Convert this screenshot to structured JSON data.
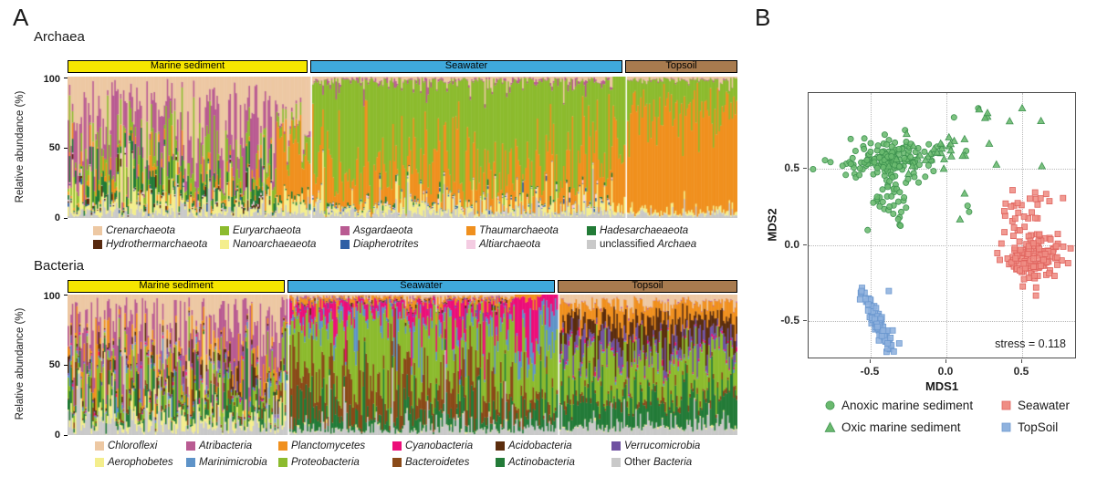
{
  "panel_a": {
    "label": "A"
  },
  "panel_b": {
    "label": "B"
  },
  "chart_data": [
    {
      "type": "bar",
      "subtype": "stacked-relative-abundance",
      "title": "Archaea",
      "ylabel": "Relative abundance (%)",
      "ylim": [
        0,
        100
      ],
      "ytick_labels": [
        "100",
        "50",
        "0"
      ],
      "taxa": [
        {
          "name": "Crenarchaeota",
          "color": "#EDC8A3"
        },
        {
          "name": "Euryarchaeota",
          "color": "#8CBB2E"
        },
        {
          "name": "Asgardaeota",
          "color": "#B95B92"
        },
        {
          "name": "Thaumarchaeota",
          "color": "#F0901E"
        },
        {
          "name": "Hadesarchaeaeota",
          "color": "#227B37"
        },
        {
          "name": "Hydrothermarchaeota",
          "color": "#57290F"
        },
        {
          "name": "Nanoarchaeaeota",
          "color": "#F4EE8D"
        },
        {
          "name": "Diapherotrites",
          "color": "#2F5FA5"
        },
        {
          "name": "Altiarchaeota",
          "color": "#F4CCE2"
        },
        {
          "name": "unclassified Archaea",
          "color": "#C9C9C9",
          "roman_prefix": "unclassified ",
          "display": "Archaea"
        }
      ],
      "legend_rows": [
        [
          "Crenarchaeota",
          "Euryarchaeota",
          "Asgardaeota",
          "Thaumarchaeota",
          "Hadesarchaeaeota"
        ],
        [
          "Hydrothermarchaeota",
          "Nanoarchaeaeota",
          "Diapherotrites",
          "Altiarchaeota",
          "unclassified Archaea"
        ]
      ],
      "stack_order": [
        "unclassified Archaea",
        "Nanoarchaeaeota",
        "Diapherotrites",
        "Hydrothermarchaeota",
        "Altiarchaeota",
        "Hadesarchaeaeota",
        "Thaumarchaeota",
        "Euryarchaeota",
        "Asgardaeota",
        "Crenarchaeota"
      ],
      "sections": [
        {
          "label": "Marine sediment",
          "header_color": "#F6E600",
          "width_frac": 0.362,
          "segments": [
            {
              "width_frac": 0.86,
              "sigma": 1.1,
              "mean_abundance": {
                "Crenarchaeota": 36,
                "Asgardaeota": 24,
                "Euryarchaeota": 14,
                "Hadesarchaeaeota": 8,
                "Thaumarchaeota": 4,
                "Nanoarchaeaeota": 6,
                "Hydrothermarchaeota": 1,
                "Diapherotrites": 0.5,
                "Altiarchaeota": 0.5,
                "unclassified Archaea": 4
              }
            },
            {
              "width_frac": 0.14,
              "sigma": 0.6,
              "mean_abundance": {
                "Thaumarchaeota": 42,
                "Crenarchaeota": 30,
                "Euryarchaeota": 10,
                "Nanoarchaeaeota": 8,
                "Asgardaeota": 3,
                "Hadesarchaeaeota": 2,
                "unclassified Archaea": 4
              }
            }
          ]
        },
        {
          "label": "Seawater",
          "header_color": "#3FA9DC",
          "width_frac": 0.47,
          "segments": [
            {
              "width_frac": 0.96,
              "sigma": 0.9,
              "mean_abundance": {
                "Euryarchaeota": 62,
                "Thaumarchaeota": 24,
                "Nanoarchaeaeota": 5,
                "unclassified Archaea": 3,
                "Crenarchaeota": 2,
                "Asgardaeota": 1,
                "Hadesarchaeaeota": 0.5,
                "Diapherotrites": 0.5,
                "Altiarchaeota": 0.5
              }
            },
            {
              "width_frac": 0.04,
              "sigma": 0.5,
              "mean_abundance": {
                "Thaumarchaeota": 55,
                "Euryarchaeota": 35,
                "Nanoarchaeaeota": 3,
                "unclassified Archaea": 3
              }
            }
          ]
        },
        {
          "label": "Topsoil",
          "header_color": "#A87B4F",
          "width_frac": 0.168,
          "segments": [
            {
              "width_frac": 1.0,
              "sigma": 0.55,
              "mean_abundance": {
                "Thaumarchaeota": 72,
                "Euryarchaeota": 20,
                "Nanoarchaeaeota": 2,
                "unclassified Archaea": 3,
                "Crenarchaeota": 2,
                "Asgardaeota": 0.5
              }
            }
          ]
        }
      ]
    },
    {
      "type": "bar",
      "subtype": "stacked-relative-abundance",
      "title": "Bacteria",
      "ylabel": "Relative abundance (%)",
      "ylim": [
        0,
        100
      ],
      "ytick_labels": [
        "100",
        "50",
        "0"
      ],
      "taxa": [
        {
          "name": "Chloroflexi",
          "color": "#EDC8A3"
        },
        {
          "name": "Atribacteria",
          "color": "#B95B92"
        },
        {
          "name": "Planctomycetes",
          "color": "#F0901E"
        },
        {
          "name": "Cyanobacteria",
          "color": "#EC0E79"
        },
        {
          "name": "Acidobacteria",
          "color": "#5B2D0D"
        },
        {
          "name": "Verrucomicrobia",
          "color": "#6F51A1"
        },
        {
          "name": "Aerophobetes",
          "color": "#F4EE8D"
        },
        {
          "name": "Marinimicrobia",
          "color": "#5E93C8"
        },
        {
          "name": "Proteobacteria",
          "color": "#8CBB2E"
        },
        {
          "name": "Bacteroidetes",
          "color": "#8A4A18"
        },
        {
          "name": "Actinobacteria",
          "color": "#237B38"
        },
        {
          "name": "Other Bacteria",
          "color": "#C9C9C9",
          "roman_prefix": "Other ",
          "display": "Bacteria"
        }
      ],
      "legend_rows": [
        [
          "Chloroflexi",
          "Atribacteria",
          "Planctomycetes",
          "Cyanobacteria",
          "Acidobacteria",
          "Verrucomicrobia"
        ],
        [
          "Aerophobetes",
          "Marinimicrobia",
          "Proteobacteria",
          "Bacteroidetes",
          "Actinobacteria",
          "Other Bacteria"
        ]
      ],
      "stack_order": [
        "Other Bacteria",
        "Aerophobetes",
        "Actinobacteria",
        "Bacteroidetes",
        "Proteobacteria",
        "Marinimicrobia",
        "Cyanobacteria",
        "Verrucomicrobia",
        "Acidobacteria",
        "Planctomycetes",
        "Atribacteria",
        "Chloroflexi"
      ],
      "sections": [
        {
          "label": "Marine sediment",
          "header_color": "#F6E600",
          "width_frac": 0.329,
          "segments": [
            {
              "width_frac": 1.0,
              "sigma": 1.1,
              "mean_abundance": {
                "Chloroflexi": 30,
                "Atribacteria": 22,
                "Proteobacteria": 10,
                "Planctomycetes": 7,
                "Aerophobetes": 6,
                "Actinobacteria": 7,
                "Acidobacteria": 4,
                "Bacteroidetes": 3,
                "Marinimicrobia": 1.5,
                "Cyanobacteria": 0.5,
                "Verrucomicrobia": 1.5,
                "Other Bacteria": 9
              }
            }
          ]
        },
        {
          "label": "Seawater",
          "header_color": "#3FA9DC",
          "width_frac": 0.403,
          "segments": [
            {
              "width_frac": 0.84,
              "sigma": 0.9,
              "mean_abundance": {
                "Proteobacteria": 40,
                "Bacteroidetes": 22,
                "Actinobacteria": 10,
                "Cyanobacteria": 9,
                "Marinimicrobia": 5,
                "Other Bacteria": 6,
                "Chloroflexi": 1.5,
                "Planctomycetes": 3,
                "Verrucomicrobia": 1,
                "Atribacteria": 0.5,
                "Aerophobetes": 0.5,
                "Acidobacteria": 0.5
              }
            },
            {
              "width_frac": 0.1,
              "sigma": 0.8,
              "mean_abundance": {
                "Cyanobacteria": 30,
                "Proteobacteria": 28,
                "Bacteroidetes": 12,
                "Marinimicrobia": 8,
                "Actinobacteria": 8,
                "Other Bacteria": 6,
                "Planctomycetes": 3
              }
            },
            {
              "width_frac": 0.06,
              "sigma": 0.7,
              "mean_abundance": {
                "Marinimicrobia": 18,
                "Proteobacteria": 40,
                "Cyanobacteria": 10,
                "Actinobacteria": 12,
                "Bacteroidetes": 8,
                "Other Bacteria": 6
              }
            }
          ]
        },
        {
          "label": "Topsoil",
          "header_color": "#A87B4F",
          "width_frac": 0.268,
          "segments": [
            {
              "width_frac": 1.0,
              "sigma": 0.6,
              "mean_abundance": {
                "Chloroflexi": 6,
                "Planctomycetes": 12,
                "Acidobacteria": 14,
                "Verrucomicrobia": 8,
                "Proteobacteria": 27,
                "Actinobacteria": 19,
                "Other Bacteria": 7,
                "Bacteroidetes": 3,
                "Cyanobacteria": 1.5,
                "Atribacteria": 0.5,
                "Marinimicrobia": 1,
                "Aerophobetes": 0.5
              }
            }
          ]
        }
      ]
    },
    {
      "type": "scatter",
      "subtype": "nmds-ordination",
      "xlabel": "MDS1",
      "ylabel": "MDS2",
      "xticks": [
        -0.5,
        0.0,
        0.5
      ],
      "yticks": [
        0.5,
        0.0,
        -0.5
      ],
      "xtick_labels": [
        "-0.5",
        "0.0",
        "0.5"
      ],
      "ytick_labels": [
        "0.5",
        "0.0",
        "-0.5"
      ],
      "xlim": [
        -0.91,
        0.86
      ],
      "ylim": [
        -0.76,
        1.0
      ],
      "stress": 0.118,
      "stress_label": "stress = 0.118",
      "groups": [
        {
          "name": "Anoxic marine sediment",
          "marker": "circle",
          "fill": "#6AB96E",
          "stroke": "#3F9350",
          "clusters": [
            {
              "n": 150,
              "cx": -0.38,
              "cy": 0.56,
              "sx": 0.13,
              "sy": 0.07,
              "corr": 0.15
            },
            {
              "n": 32,
              "cx": -0.37,
              "cy": 0.3,
              "sx": 0.055,
              "sy": 0.09,
              "corr": 0
            }
          ],
          "points": [
            [
              -0.88,
              0.5
            ],
            [
              0.05,
              0.84
            ],
            [
              0.21,
              0.9
            ],
            [
              0.13,
              0.62
            ],
            [
              0.14,
              0.26
            ],
            [
              0.15,
              0.22
            ],
            [
              -0.52,
              0.1
            ],
            [
              -0.6,
              0.62
            ]
          ]
        },
        {
          "name": "Oxic marine sediment",
          "marker": "triangle",
          "fill": "#6AB96E",
          "stroke": "#3F9350",
          "clusters": [
            {
              "n": 26,
              "cx": -0.1,
              "cy": 0.6,
              "sx": 0.11,
              "sy": 0.055,
              "corr": 0.3
            },
            {
              "n": 9,
              "cx": 0.28,
              "cy": 0.74,
              "sx": 0.16,
              "sy": 0.1,
              "corr": 0.3
            }
          ],
          "points": [
            [
              -0.38,
              0.52
            ],
            [
              0.63,
              0.52
            ],
            [
              0.33,
              0.53
            ],
            [
              0.12,
              0.34
            ],
            [
              0.09,
              0.17
            ],
            [
              -0.25,
              0.47
            ],
            [
              0.5,
              0.9
            ]
          ]
        },
        {
          "name": "Seawater",
          "marker": "square",
          "fill": "#EF8D84",
          "stroke": "#E0655F",
          "clusters": [
            {
              "n": 140,
              "cx": 0.57,
              "cy": -0.08,
              "sx": 0.095,
              "sy": 0.085,
              "corr": 0.1
            },
            {
              "n": 26,
              "cx": 0.5,
              "cy": 0.22,
              "sx": 0.1,
              "sy": 0.06,
              "corr": 0.2
            }
          ],
          "points": [
            [
              0.68,
              0.29
            ],
            [
              0.77,
              0.31
            ],
            [
              0.82,
              -0.02
            ]
          ]
        },
        {
          "name": "TopSoil",
          "marker": "square",
          "fill": "#8FB2DE",
          "stroke": "#6D99D0",
          "clusters": [
            {
              "n": 90,
              "cx": -0.44,
              "cy": -0.52,
              "sx": 0.055,
              "sy": 0.1,
              "corr": -0.9
            }
          ],
          "points": [
            [
              -0.56,
              -0.3
            ],
            [
              -0.38,
              -0.3
            ]
          ]
        }
      ]
    }
  ]
}
